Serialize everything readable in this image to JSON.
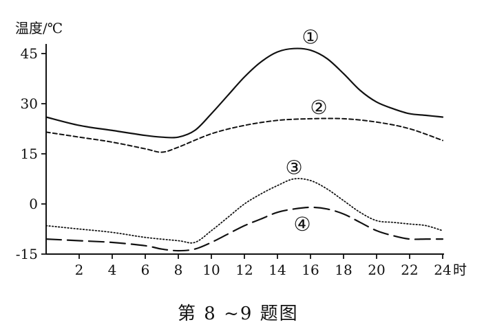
{
  "chart_data": {
    "type": "line",
    "ylabel": "温度/℃",
    "xlabel": "时",
    "caption": "第 8 ~9 题图",
    "xlim": [
      0,
      24
    ],
    "ylim": [
      -15,
      45
    ],
    "x_ticks": [
      2,
      4,
      6,
      8,
      10,
      12,
      14,
      16,
      18,
      20,
      22,
      24
    ],
    "x_tick_labels": [
      "2",
      "4",
      "6",
      "8",
      "10",
      "12",
      "14",
      "16",
      "18",
      "20",
      "22",
      "24"
    ],
    "y_ticks": [
      -15,
      0,
      15,
      30,
      45
    ],
    "y_tick_labels": [
      "-15",
      "0",
      "15",
      "30",
      "45"
    ],
    "grid": false,
    "series": [
      {
        "name": "①",
        "style": "solid",
        "color": "#111111",
        "x": [
          0,
          2,
          4,
          6,
          7,
          8,
          9,
          10,
          11,
          12,
          13,
          14,
          15,
          16,
          17,
          18,
          19,
          20,
          21,
          22,
          23,
          24
        ],
        "y": [
          26,
          23.5,
          22,
          20.5,
          20,
          20,
          22,
          27,
          32.5,
          38,
          42.5,
          45.5,
          46.5,
          46,
          43.5,
          39,
          34,
          30.5,
          28.5,
          27,
          26.5,
          26
        ]
      },
      {
        "name": "②",
        "style": "dashed",
        "color": "#111111",
        "x": [
          0,
          2,
          4,
          6,
          7,
          8,
          10,
          12,
          14,
          16,
          18,
          20,
          22,
          24
        ],
        "y": [
          21.5,
          20,
          18.5,
          16.5,
          15.5,
          17,
          21,
          23.5,
          25,
          25.5,
          25.5,
          24.5,
          22.5,
          19
        ]
      },
      {
        "name": "③",
        "style": "dotted",
        "color": "#111111",
        "x": [
          0,
          2,
          4,
          6,
          8,
          9,
          10,
          11,
          12,
          13,
          14,
          15,
          16,
          17,
          18,
          19,
          20,
          21,
          22,
          23,
          24
        ],
        "y": [
          -6.5,
          -7.5,
          -8.5,
          -10,
          -11,
          -11.5,
          -8,
          -4,
          0,
          3,
          5.5,
          7.5,
          7,
          4.5,
          1,
          -2.5,
          -5,
          -5.5,
          -6,
          -6.5,
          -8
        ]
      },
      {
        "name": "④",
        "style": "longdash",
        "color": "#111111",
        "x": [
          0,
          2,
          4,
          6,
          7,
          8,
          9,
          10,
          11,
          12,
          13,
          14,
          15,
          16,
          17,
          18,
          19,
          20,
          21,
          22,
          23,
          24
        ],
        "y": [
          -10.5,
          -11,
          -11.5,
          -12.5,
          -13.5,
          -14,
          -13.5,
          -11.5,
          -9,
          -6.5,
          -4.5,
          -2.5,
          -1.5,
          -1,
          -1.5,
          -3,
          -5.5,
          -8,
          -9.5,
          -10.5,
          -10.5,
          -10.5
        ]
      }
    ],
    "curve_labels": [
      {
        "text": "①",
        "x": 16,
        "y": 50
      },
      {
        "text": "②",
        "x": 16.5,
        "y": 29
      },
      {
        "text": "③",
        "x": 15,
        "y": 11
      },
      {
        "text": "④",
        "x": 15.5,
        "y": -6
      }
    ]
  }
}
